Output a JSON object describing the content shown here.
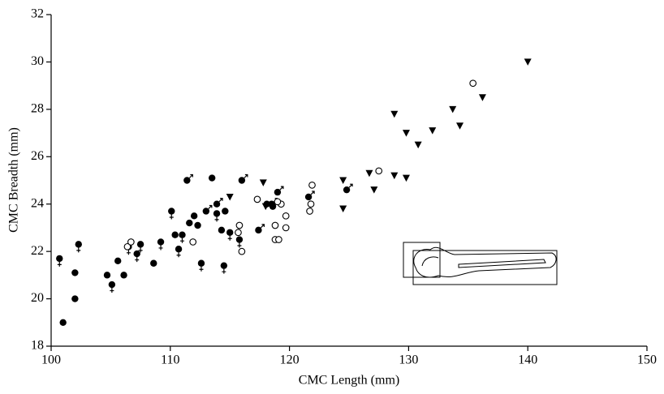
{
  "chart_data": {
    "type": "scatter",
    "x_label": "CMC Length (mm)",
    "y_label": "CMC Breadth (mm)",
    "xlim": [
      100,
      150
    ],
    "xticks": [
      100,
      110,
      120,
      130,
      140,
      150
    ],
    "ylim": [
      18,
      32
    ],
    "yticks": [
      18,
      20,
      22,
      24,
      26,
      28,
      30,
      32
    ],
    "series": [
      {
        "marker": "filled-circle-female",
        "color": "#000000",
        "x": [
          100.7,
          102.3,
          105.1,
          106.5,
          107.5,
          107.2,
          109.2,
          110.1,
          111.0,
          112.6,
          113.9,
          114.5,
          115.0,
          115.8,
          110.7
        ],
        "values": [
          21.7,
          22.3,
          20.6,
          22.2,
          22.3,
          21.9,
          22.4,
          23.7,
          22.7,
          21.5,
          23.6,
          21.4,
          22.8,
          22.5,
          22.1
        ]
      },
      {
        "marker": "filled-circle-male",
        "color": "#000000",
        "x": [
          111.4,
          116.0,
          119.0,
          121.6,
          124.8,
          113.9,
          117.4,
          118.5,
          113.0
        ],
        "values": [
          25.0,
          25.0,
          24.5,
          24.3,
          24.6,
          24.0,
          22.9,
          24.0,
          23.7
        ]
      },
      {
        "marker": "filled-circle",
        "color": "#000000",
        "x": [
          101.0,
          102.0,
          102.0,
          104.7,
          105.6,
          106.1,
          108.6,
          110.4,
          111.6,
          112.0,
          112.3,
          113.5,
          114.3,
          114.6,
          118.1,
          118.6
        ],
        "values": [
          19.0,
          20.0,
          21.1,
          21.0,
          21.6,
          21.0,
          21.5,
          22.7,
          23.2,
          23.5,
          23.1,
          25.1,
          22.9,
          23.7,
          24.0,
          23.9
        ]
      },
      {
        "marker": "open-circle",
        "color": "#000000",
        "x": [
          106.4,
          106.7,
          111.9,
          115.8,
          115.7,
          116.0,
          117.3,
          118.8,
          118.8,
          119.1,
          119.3,
          119.7,
          119.7,
          121.7,
          121.8,
          121.9,
          127.5,
          135.4,
          119.0
        ],
        "values": [
          22.2,
          22.4,
          22.4,
          23.1,
          22.8,
          22.0,
          24.2,
          23.1,
          22.5,
          22.5,
          24.0,
          23.5,
          23.0,
          23.7,
          24.0,
          24.8,
          25.4,
          29.1,
          24.1
        ]
      },
      {
        "marker": "triangle-down",
        "color": "#000000",
        "x": [
          115.0,
          117.8,
          118.0,
          124.5,
          124.5,
          126.7,
          127.1,
          128.8,
          128.8,
          129.8,
          129.8,
          130.8,
          132.0,
          133.7,
          134.3,
          136.2,
          140.0
        ],
        "values": [
          24.3,
          24.9,
          23.9,
          25.0,
          23.8,
          25.3,
          24.6,
          27.8,
          25.2,
          27.0,
          25.1,
          26.5,
          27.1,
          28.0,
          27.3,
          28.5,
          30.0
        ]
      }
    ]
  }
}
